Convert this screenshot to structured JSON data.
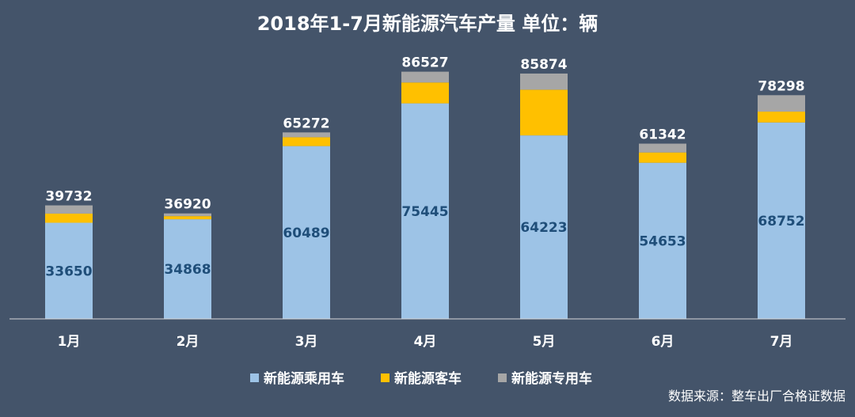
{
  "chart_data": {
    "type": "bar",
    "stacked": true,
    "title": "2018年1-7月新能源汽车产量  单位：辆",
    "categories": [
      "1月",
      "2月",
      "3月",
      "4月",
      "5月",
      "6月",
      "7月"
    ],
    "series": [
      {
        "name": "新能源乘用车",
        "color": "#9dc3e6",
        "values": [
          33650,
          34868,
          60489,
          75445,
          64223,
          54653,
          68752
        ]
      },
      {
        "name": "新能源客车",
        "color": "#ffc000",
        "values": [
          3200,
          1100,
          3100,
          7300,
          16000,
          3600,
          3800
        ]
      },
      {
        "name": "新能源专用车",
        "color": "#a6a6a6",
        "values": [
          2882,
          952,
          1683,
          3782,
          5651,
          3089,
          5746
        ]
      }
    ],
    "totals": [
      39732,
      36920,
      65272,
      86527,
      85874,
      61342,
      78298
    ],
    "ylim": [
      0,
      95000
    ],
    "legend_position": "bottom",
    "grid": false,
    "source": "数据来源：整车出厂合格证数据"
  }
}
